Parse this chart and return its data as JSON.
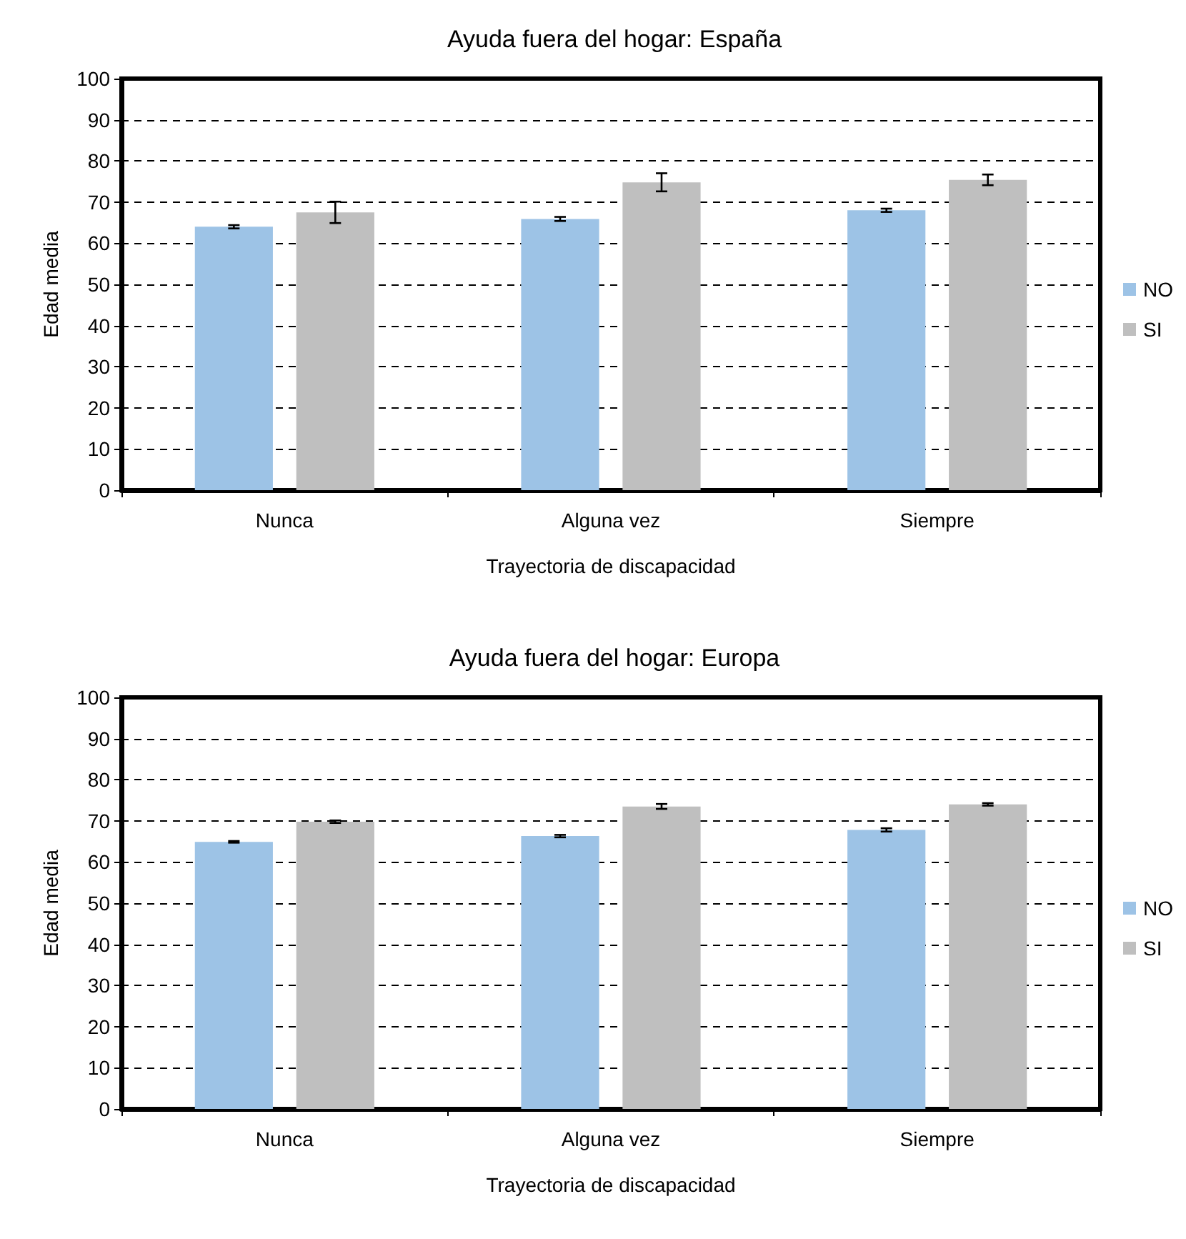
{
  "chart_data": [
    {
      "type": "bar",
      "title": "Ayuda fuera del hogar: España",
      "xlabel": "Trayectoria de discapacidad",
      "ylabel": "Edad media",
      "categories": [
        "Nunca",
        "Alguna vez",
        "Siempre"
      ],
      "series": [
        {
          "name": "NO",
          "color": "#9dc3e6",
          "values": [
            64.0,
            65.9,
            68.0
          ],
          "errors": [
            0.4,
            0.5,
            0.4
          ]
        },
        {
          "name": "SI",
          "color": "#bfbfbf",
          "values": [
            67.5,
            74.8,
            75.4
          ],
          "errors": [
            2.6,
            2.2,
            1.3
          ]
        }
      ],
      "ylim": [
        0,
        100
      ],
      "yticks": [
        0,
        10,
        20,
        30,
        40,
        50,
        60,
        70,
        80,
        90,
        100
      ],
      "grid": "y",
      "legend": "right"
    },
    {
      "type": "bar",
      "title": "Ayuda fuera del hogar: Europa",
      "xlabel": "Trayectoria de discapacidad",
      "ylabel": "Edad media",
      "categories": [
        "Nunca",
        "Alguna vez",
        "Siempre"
      ],
      "series": [
        {
          "name": "NO",
          "color": "#9dc3e6",
          "values": [
            64.9,
            66.3,
            67.8
          ],
          "errors": [
            0.2,
            0.3,
            0.4
          ]
        },
        {
          "name": "SI",
          "color": "#bfbfbf",
          "values": [
            69.8,
            73.5,
            74.0
          ],
          "errors": [
            0.3,
            0.6,
            0.3
          ]
        }
      ],
      "ylim": [
        0,
        100
      ],
      "yticks": [
        0,
        10,
        20,
        30,
        40,
        50,
        60,
        70,
        80,
        90,
        100
      ],
      "grid": "y",
      "legend": "right"
    }
  ]
}
